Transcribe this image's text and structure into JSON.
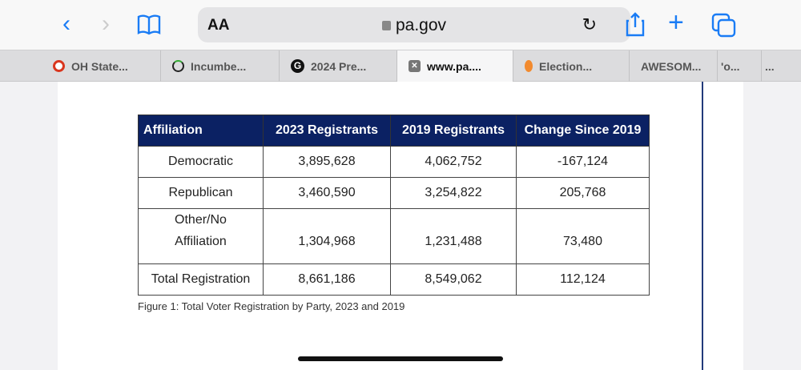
{
  "browser": {
    "url": "pa.gov",
    "text_size_label": "AA",
    "tabs": [
      {
        "label": "OH State...",
        "icon": "target-icon",
        "color": "#d9361e"
      },
      {
        "label": "Incumbe...",
        "icon": "loading-ring-icon",
        "color": "#222"
      },
      {
        "label": "2024 Pre...",
        "icon": "g-logo-icon",
        "color": "#111"
      },
      {
        "label": "www.pa....",
        "icon": "close-icon",
        "color": "#777",
        "active": true
      },
      {
        "label": "Election...",
        "icon": "peach-icon",
        "color": "#f28a2e"
      },
      {
        "label": "AWESOM...",
        "icon": ""
      },
      {
        "label": "'o...",
        "icon": ""
      },
      {
        "label": "...",
        "icon": ""
      }
    ]
  },
  "table": {
    "headers": [
      "Affiliation",
      "2023 Registrants",
      "2019 Registrants",
      "Change Since 2019"
    ],
    "rows": [
      [
        "Democratic",
        "3,895,628",
        "4,062,752",
        "-167,124"
      ],
      [
        "Republican",
        "3,460,590",
        "3,254,822",
        "205,768"
      ],
      [
        "Other/No Affiliation",
        "1,304,968",
        "1,231,488",
        "73,480"
      ],
      [
        "Total Registration",
        "8,661,186",
        "8,549,062",
        "112,124"
      ]
    ]
  },
  "caption": "Figure 1: Total Voter Registration by Party, 2023 and 2019",
  "colors": {
    "accent": "#1a7cf5",
    "header_bg": "#0b2163"
  }
}
